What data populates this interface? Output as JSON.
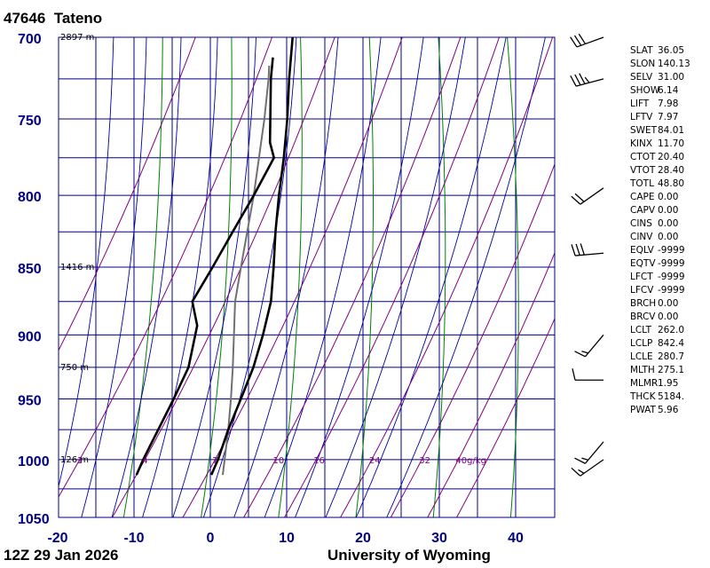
{
  "header": {
    "station_id": "47646",
    "station_name": "Tateno"
  },
  "footer": {
    "time": "12Z 29 Jan 2026",
    "source": "University of Wyoming"
  },
  "colors": {
    "frame": "#000080",
    "isobar": "#000080",
    "isotherm": "#000080",
    "dry_adiabat": "#008000",
    "moist_adiabat": "#0000a0",
    "mixing_ratio": "#800080",
    "temperature": "#000000",
    "dewpoint": "#000000",
    "parcel": "#707070",
    "axis_label": "#000080",
    "mixing_label": "#800080"
  },
  "chart_data": {
    "type": "skew-t log-p sounding",
    "x_axis": {
      "ticks": [
        "-20",
        "-10",
        "0",
        "10",
        "20",
        "30",
        "40"
      ],
      "range_c": [
        -20,
        45
      ]
    },
    "y_axis": {
      "ticks": [
        "700",
        "750",
        "800",
        "850",
        "900",
        "950",
        "1000",
        "1050"
      ],
      "range_hpa": [
        700,
        1050
      ],
      "scale": "log"
    },
    "isobars_hpa": [
      700,
      725,
      750,
      775,
      800,
      825,
      850,
      875,
      900,
      925,
      950,
      975,
      1000,
      1025
    ],
    "height_labels": [
      {
        "text": "2897 m",
        "p": 700
      },
      {
        "text": "1416 m",
        "p": 850
      },
      {
        "text": "750 m",
        "p": 925
      },
      {
        "text": "126 m",
        "p": 1000
      }
    ],
    "dry_adiabats_theta_k": [
      263,
      273,
      283,
      293,
      303,
      313,
      323,
      333,
      343
    ],
    "moist_adiabats_start_c": [
      -16,
      -12,
      -8,
      -4,
      0,
      4,
      8,
      12,
      16,
      20,
      24,
      28
    ],
    "mixing_ratio_lines_gkg": [
      0.4,
      1,
      2,
      4,
      7,
      10,
      16,
      24,
      32,
      40
    ],
    "mixing_ratio_labels": [
      "1",
      "4",
      "7",
      "10",
      "16",
      "24",
      "32",
      "40g/kg"
    ],
    "temperature_profile": [
      {
        "p": 1013,
        "t": 1.4
      },
      {
        "p": 1000,
        "t": 1.0
      },
      {
        "p": 975,
        "t": -0.1
      },
      {
        "p": 950,
        "t": -0.9
      },
      {
        "p": 925,
        "t": -1.7
      },
      {
        "p": 900,
        "t": -2.9
      },
      {
        "p": 875,
        "t": -4.3
      },
      {
        "p": 850,
        "t": -6.4
      },
      {
        "p": 825,
        "t": -8.6
      },
      {
        "p": 800,
        "t": -10.6
      },
      {
        "p": 775,
        "t": -12.4
      },
      {
        "p": 750,
        "t": -14.4
      },
      {
        "p": 725,
        "t": -16.6
      },
      {
        "p": 700,
        "t": -18.6
      }
    ],
    "dewpoint_profile": [
      {
        "p": 1013,
        "t": -8.4
      },
      {
        "p": 1000,
        "t": -8.8
      },
      {
        "p": 950,
        "t": -9.7
      },
      {
        "p": 925,
        "t": -10.2
      },
      {
        "p": 893,
        "t": -12.2
      },
      {
        "p": 875,
        "t": -14.6
      },
      {
        "p": 850,
        "t": -14.4
      },
      {
        "p": 825,
        "t": -14.2
      },
      {
        "p": 800,
        "t": -13.9
      },
      {
        "p": 775,
        "t": -13.7
      },
      {
        "p": 765,
        "t": -15.2
      },
      {
        "p": 725,
        "t": -19.0
      },
      {
        "p": 712,
        "t": -20.0
      }
    ],
    "parcel_profile": [
      {
        "p": 1013,
        "t": 2.9
      },
      {
        "p": 975,
        "t": -0.1
      },
      {
        "p": 950,
        "t": -2.2
      },
      {
        "p": 925,
        "t": -4.4
      },
      {
        "p": 900,
        "t": -6.7
      },
      {
        "p": 875,
        "t": -9.0
      },
      {
        "p": 842,
        "t": -11.2
      },
      {
        "p": 800,
        "t": -13.9
      },
      {
        "p": 750,
        "t": -17.4
      },
      {
        "p": 725,
        "t": -19.3
      },
      {
        "p": 717,
        "t": -20.0
      }
    ],
    "wind_barbs": [
      {
        "p": 700,
        "dir": 250,
        "kt": 30
      },
      {
        "p": 725,
        "dir": 255,
        "kt": 35
      },
      {
        "p": 795,
        "dir": 235,
        "kt": 20
      },
      {
        "p": 840,
        "dir": 265,
        "kt": 30
      },
      {
        "p": 900,
        "dir": 220,
        "kt": 15
      },
      {
        "p": 935,
        "dir": 270,
        "kt": 10
      },
      {
        "p": 985,
        "dir": 220,
        "kt": 15
      },
      {
        "p": 1000,
        "dir": 235,
        "kt": 15
      }
    ],
    "indices": [
      {
        "key": "SLAT",
        "value": "36.05"
      },
      {
        "key": "SLON",
        "value": "140.13"
      },
      {
        "key": "SELV",
        "value": "31.00"
      },
      {
        "key": "SHOW",
        "value": "6.14"
      },
      {
        "key": "LIFT",
        "value": "7.98"
      },
      {
        "key": "LFTV",
        "value": "7.97"
      },
      {
        "key": "SWET",
        "value": "84.01"
      },
      {
        "key": "KINX",
        "value": "11.70"
      },
      {
        "key": "CTOT",
        "value": "20.40"
      },
      {
        "key": "VTOT",
        "value": "28.40"
      },
      {
        "key": "TOTL",
        "value": "48.80"
      },
      {
        "key": "CAPE",
        "value": "0.00"
      },
      {
        "key": "CAPV",
        "value": "0.00"
      },
      {
        "key": "CINS",
        "value": "0.00"
      },
      {
        "key": "CINV",
        "value": "0.00"
      },
      {
        "key": "EQLV",
        "value": "-9999"
      },
      {
        "key": "EQTV",
        "value": "-9999"
      },
      {
        "key": "LFCT",
        "value": "-9999"
      },
      {
        "key": "LFCV",
        "value": "-9999"
      },
      {
        "key": "BRCH",
        "value": "0.00"
      },
      {
        "key": "BRCV",
        "value": "0.00"
      },
      {
        "key": "LCLT",
        "value": "262.0"
      },
      {
        "key": "LCLP",
        "value": "842.4"
      },
      {
        "key": "LCLE",
        "value": "280.7"
      },
      {
        "key": "MLTH",
        "value": "275.1"
      },
      {
        "key": "MLMR",
        "value": "1.95"
      },
      {
        "key": "THCK",
        "value": "5184."
      },
      {
        "key": "PWAT",
        "value": "5.96"
      }
    ]
  }
}
